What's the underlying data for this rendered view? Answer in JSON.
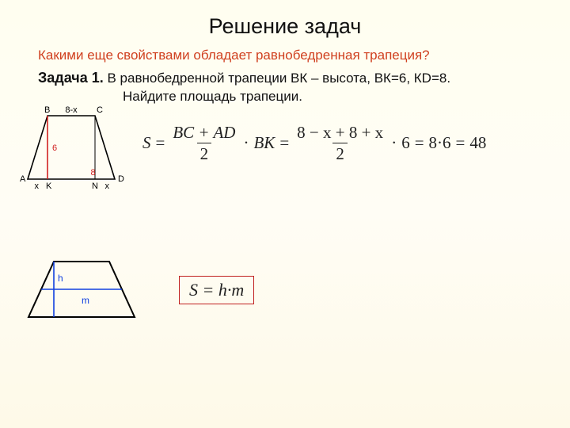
{
  "title": "Решение задач",
  "subtitle": "Какими еще свойствами обладает равнобедренная трапеция?",
  "problem": {
    "label": "Задача 1.",
    "text_after_label": "В равнобедренной трапеции ВК – высота, ВК=6, КD=8.",
    "line2": "Найдите площадь трапеции."
  },
  "formula1": {
    "lhs": "S",
    "eq": "=",
    "frac1_num": "BC + AD",
    "frac1_den": "2",
    "dot": "·",
    "mult1": "BK",
    "frac2_num": "8 − x + 8 + x",
    "frac2_den": "2",
    "mult2": "6",
    "step2": "8·6",
    "result": "48"
  },
  "formula2": "S = h·m",
  "fig1": {
    "type": "trapezoid-diagram",
    "stroke": "#000000",
    "red": "#d02020",
    "ticks": {
      "x1": "x",
      "x2": "x"
    },
    "labels": {
      "A": "A",
      "B": "B",
      "C": "C",
      "D": "D",
      "K": "K",
      "N": "N",
      "topEdge": "8-x",
      "heightBK": "6",
      "KD": "8"
    },
    "geom": {
      "A": [
        15,
        96
      ],
      "B": [
        40,
        16
      ],
      "C": [
        100,
        16
      ],
      "D": [
        125,
        96
      ],
      "K": [
        40,
        96
      ],
      "N": [
        100,
        96
      ]
    },
    "label_fontsize": 11
  },
  "fig2": {
    "type": "trapezoid-diagram",
    "stroke": "#000000",
    "blue": "#1040e0",
    "labels": {
      "h": "h",
      "m": "m"
    },
    "geom": {
      "A": [
        10,
        80
      ],
      "B": [
        42,
        10
      ],
      "C": [
        112,
        10
      ],
      "D": [
        144,
        80
      ],
      "hTop": [
        42,
        10
      ],
      "hBot": [
        42,
        80
      ],
      "mL": [
        26,
        45
      ],
      "mR": [
        128,
        45
      ]
    },
    "stroke_width": 2,
    "label_fontsize": 12
  }
}
